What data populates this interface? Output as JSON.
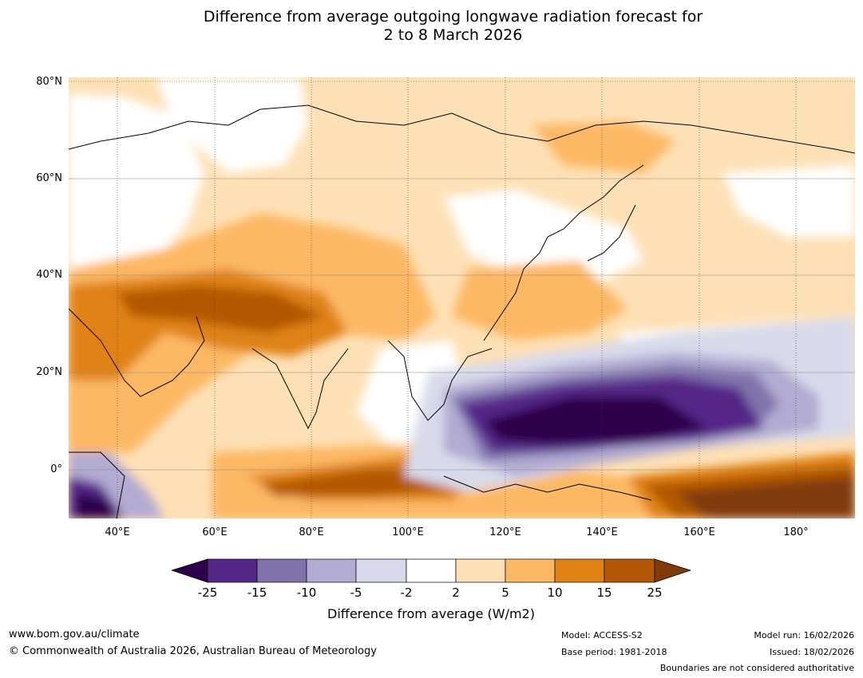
{
  "title": {
    "line1": "Difference from average outgoing longwave radiation forecast for",
    "line2": "2 to 8 March 2026"
  },
  "map": {
    "lat_labels": [
      "80°N",
      "60°N",
      "40°N",
      "20°N",
      "0°"
    ],
    "lon_labels": [
      "40°E",
      "60°E",
      "80°E",
      "100°E",
      "120°E",
      "140°E",
      "160°E",
      "180°"
    ],
    "colors": {
      "very_neg": "#2d004b",
      "neg_25_15": "#542788",
      "neg_15_10": "#8073ac",
      "neg_10_5": "#b2abd2",
      "neg_5_2": "#d8daeb",
      "neutral": "#ffffff",
      "pos_2_5": "#fee0b6",
      "pos_5_10": "#fdb863",
      "pos_10_15": "#e08214",
      "pos_15_25": "#b35806",
      "very_pos": "#7f3b08"
    }
  },
  "colorbar": {
    "ticks": [
      "-25",
      "-15",
      "-10",
      "-5",
      "-2",
      "2",
      "5",
      "10",
      "15",
      "25"
    ],
    "label": "Difference from average (W/m2)"
  },
  "footer": {
    "url": "www.bom.gov.au/climate",
    "copyright": "© Commonwealth of Australia 2026, Australian Bureau of Meteorology",
    "model": "Model: ACCESS-S2",
    "base_period": "Base period: 1981-2018",
    "model_run": "Model run: 16/02/2026",
    "issued": "Issued: 18/02/2026",
    "disclaimer": "Boundaries are not considered authoritative"
  }
}
